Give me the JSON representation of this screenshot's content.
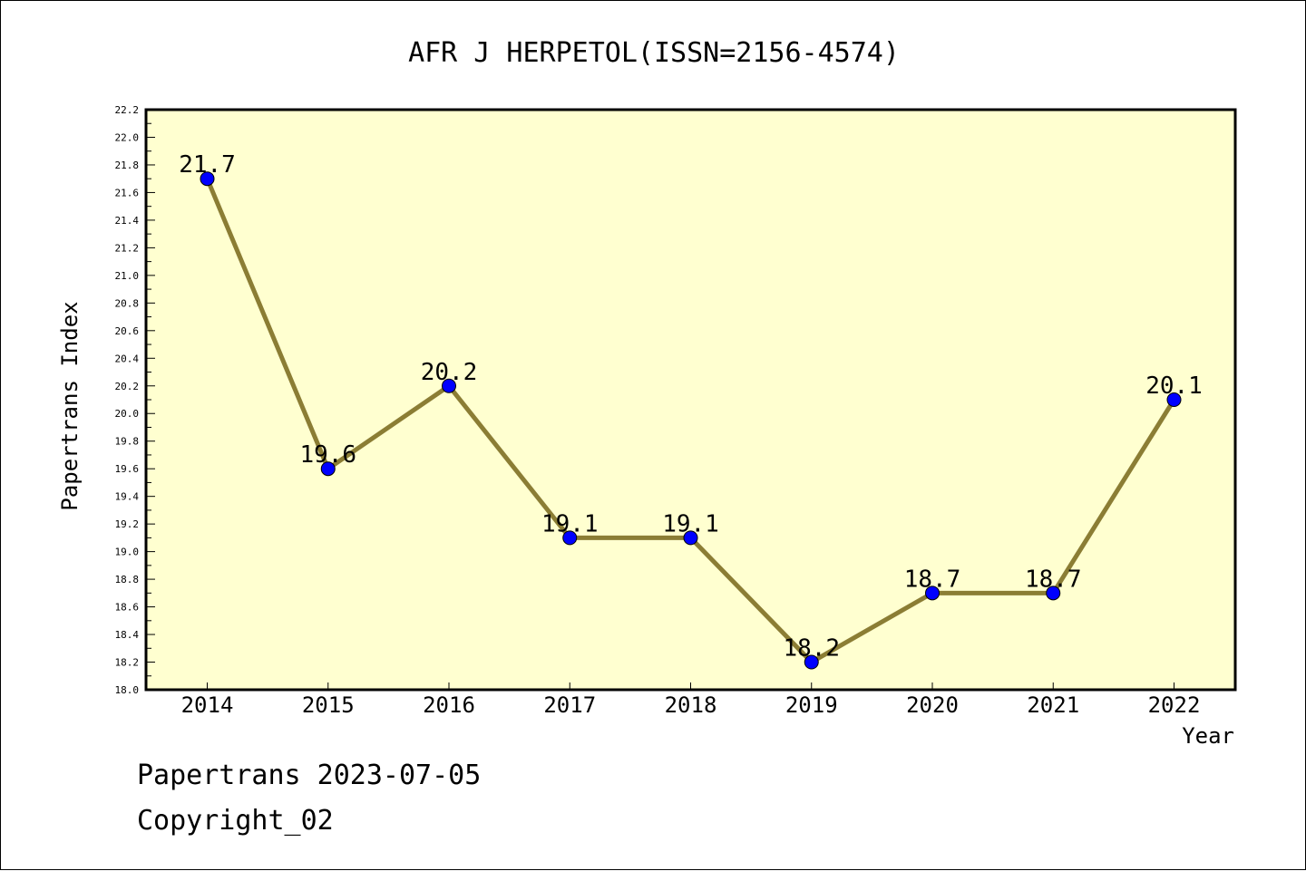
{
  "chart_data": {
    "type": "line",
    "title": "AFR J HERPETOL(ISSN=2156-4574)",
    "xlabel": "Year",
    "ylabel": "Papertrans Index",
    "categories": [
      "2014",
      "2015",
      "2016",
      "2017",
      "2018",
      "2019",
      "2020",
      "2021",
      "2022"
    ],
    "series": [
      {
        "values": [
          21.7,
          19.6,
          20.2,
          19.1,
          19.1,
          18.2,
          18.7,
          18.7,
          20.1
        ],
        "labels": [
          "21.7",
          "19.6",
          "20.2",
          "19.1",
          "19.1",
          "18.2",
          "18.7",
          "18.7",
          "20.1"
        ]
      }
    ],
    "ylim": [
      18.0,
      22.2
    ],
    "yticks": [
      "18.0",
      "18.2",
      "18.4",
      "18.6",
      "18.8",
      "19.0",
      "19.2",
      "19.4",
      "19.6",
      "19.8",
      "20.0",
      "20.2",
      "20.4",
      "20.6",
      "20.8",
      "21.0",
      "21.2",
      "21.4",
      "21.6",
      "21.8",
      "22.0",
      "22.2"
    ],
    "grid": false,
    "colors": {
      "plot_background": "#ffffd0",
      "line": "#8b7d34",
      "marker": "#0000ff"
    }
  },
  "footer": {
    "line1": "Papertrans 2023-07-05",
    "line2": "Copyright_02"
  }
}
